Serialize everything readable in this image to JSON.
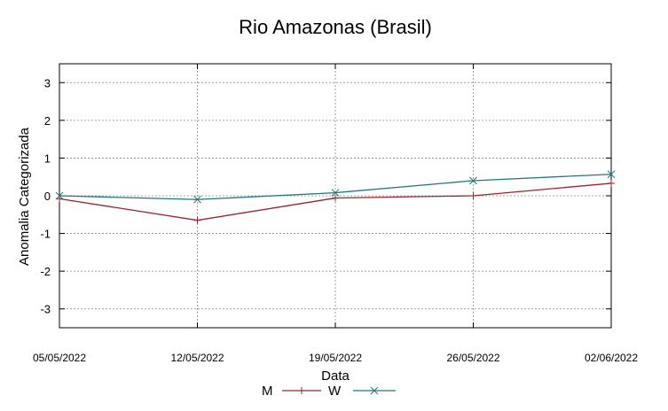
{
  "chart_data": {
    "type": "line",
    "title": "Rio Amazonas (Brasil)",
    "xlabel": "Data",
    "ylabel": "Anomalia Categorizada",
    "categories": [
      "05/05/2022",
      "12/05/2022",
      "19/05/2022",
      "26/05/2022",
      "02/06/2022"
    ],
    "yticks": [
      3,
      2,
      1,
      0,
      -1,
      -2,
      -3
    ],
    "ylim": [
      -3.5,
      3.5
    ],
    "grid": true,
    "legend_position": "bottom",
    "series": [
      {
        "name": "M",
        "color": "#a0222a",
        "marker": "plus",
        "values": [
          -0.08,
          -0.65,
          -0.06,
          0.0,
          0.33
        ]
      },
      {
        "name": "W",
        "color": "#1f7a7a",
        "marker": "cross",
        "values": [
          0.0,
          -0.1,
          0.08,
          0.4,
          0.57
        ]
      }
    ]
  }
}
